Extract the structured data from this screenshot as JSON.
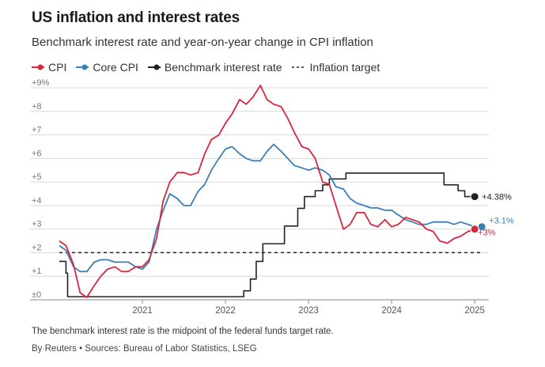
{
  "header": {
    "title": "US inflation and interest rates",
    "subtitle": "Benchmark interest rate and year-on-year change in CPI inflation"
  },
  "footer": {
    "note": "The benchmark interest rate is the midpoint of the federal funds target rate.",
    "source": "By Reuters • Sources: Bureau of Labor Statistics, LSEG"
  },
  "colors": {
    "cpi": "#d7263d",
    "core": "#3a7fb5",
    "rate": "#222222",
    "target": "#222222",
    "grid": "#d9d9d9"
  },
  "chart_data": {
    "type": "line",
    "title": "US inflation and interest rates",
    "subtitle": "Benchmark interest rate and year-on-year change in CPI inflation",
    "xlabel": "",
    "ylabel": "",
    "xlim": [
      2020.0,
      2025.17
    ],
    "ylim": [
      0,
      9
    ],
    "y_ticks": [
      0,
      1,
      2,
      3,
      4,
      5,
      6,
      7,
      8,
      9
    ],
    "y_tick_labels": [
      "±0",
      "+1",
      "+2",
      "+3",
      "+4",
      "+5",
      "+6",
      "+7",
      "+8",
      "+9%"
    ],
    "x_ticks": [
      2021,
      2022,
      2023,
      2024,
      2025
    ],
    "x_tick_labels": [
      "2021",
      "2022",
      "2023",
      "2024",
      "2025"
    ],
    "grid": true,
    "legend": [
      {
        "name": "CPI",
        "style": "line-dot"
      },
      {
        "name": "Core CPI",
        "style": "line-dot"
      },
      {
        "name": "Benchmark interest rate",
        "style": "line-dot"
      },
      {
        "name": "Inflation target",
        "style": "dashed"
      }
    ],
    "series": [
      {
        "name": "CPI",
        "step": false,
        "end_label": "+3%",
        "x": [
          2020.0,
          2020.08,
          2020.17,
          2020.25,
          2020.33,
          2020.42,
          2020.5,
          2020.58,
          2020.67,
          2020.75,
          2020.83,
          2020.92,
          2021.0,
          2021.08,
          2021.17,
          2021.25,
          2021.33,
          2021.42,
          2021.5,
          2021.58,
          2021.67,
          2021.75,
          2021.83,
          2021.92,
          2022.0,
          2022.08,
          2022.17,
          2022.25,
          2022.33,
          2022.42,
          2022.5,
          2022.58,
          2022.67,
          2022.75,
          2022.83,
          2022.92,
          2023.0,
          2023.08,
          2023.17,
          2023.25,
          2023.33,
          2023.42,
          2023.5,
          2023.58,
          2023.67,
          2023.75,
          2023.83,
          2023.92,
          2024.0,
          2024.08,
          2024.17,
          2024.25,
          2024.33,
          2024.42,
          2024.5,
          2024.58,
          2024.67,
          2024.75,
          2024.83,
          2024.92,
          2025.0
        ],
        "values": [
          2.5,
          2.3,
          1.5,
          0.3,
          0.1,
          0.6,
          1.0,
          1.3,
          1.4,
          1.2,
          1.2,
          1.4,
          1.4,
          1.7,
          2.6,
          4.2,
          5.0,
          5.4,
          5.4,
          5.3,
          5.4,
          6.2,
          6.8,
          7.0,
          7.5,
          7.9,
          8.5,
          8.3,
          8.6,
          9.1,
          8.5,
          8.3,
          8.2,
          7.7,
          7.1,
          6.5,
          6.4,
          6.0,
          5.0,
          4.9,
          4.0,
          3.0,
          3.2,
          3.7,
          3.7,
          3.2,
          3.1,
          3.4,
          3.1,
          3.2,
          3.5,
          3.4,
          3.3,
          3.0,
          2.9,
          2.5,
          2.4,
          2.6,
          2.7,
          2.9,
          3.0
        ]
      },
      {
        "name": "Core CPI",
        "step": false,
        "end_label": "+3.1%",
        "x": [
          2020.0,
          2020.08,
          2020.17,
          2020.25,
          2020.33,
          2020.42,
          2020.5,
          2020.58,
          2020.67,
          2020.75,
          2020.83,
          2020.92,
          2021.0,
          2021.08,
          2021.17,
          2021.25,
          2021.33,
          2021.42,
          2021.5,
          2021.58,
          2021.67,
          2021.75,
          2021.83,
          2021.92,
          2022.0,
          2022.08,
          2022.17,
          2022.25,
          2022.33,
          2022.42,
          2022.5,
          2022.58,
          2022.67,
          2022.75,
          2022.83,
          2022.92,
          2023.0,
          2023.08,
          2023.17,
          2023.25,
          2023.33,
          2023.42,
          2023.5,
          2023.58,
          2023.67,
          2023.75,
          2023.83,
          2023.92,
          2024.0,
          2024.08,
          2024.17,
          2024.25,
          2024.33,
          2024.42,
          2024.5,
          2024.58,
          2024.67,
          2024.75,
          2024.83,
          2024.92,
          2025.0
        ],
        "values": [
          2.3,
          2.1,
          1.4,
          1.2,
          1.2,
          1.6,
          1.7,
          1.7,
          1.6,
          1.6,
          1.6,
          1.4,
          1.3,
          1.6,
          3.0,
          3.8,
          4.5,
          4.3,
          4.0,
          4.0,
          4.6,
          4.9,
          5.5,
          6.0,
          6.4,
          6.5,
          6.2,
          6.0,
          5.9,
          5.9,
          6.3,
          6.6,
          6.3,
          6.0,
          5.7,
          5.6,
          5.5,
          5.6,
          5.5,
          5.3,
          4.8,
          4.7,
          4.3,
          4.1,
          4.0,
          3.9,
          3.9,
          3.8,
          3.8,
          3.6,
          3.4,
          3.3,
          3.2,
          3.2,
          3.3,
          3.3,
          3.3,
          3.2,
          3.3,
          3.2,
          3.1
        ]
      },
      {
        "name": "Benchmark interest rate",
        "step": true,
        "end_label": "+4.38%",
        "x": [
          2020.0,
          2020.05,
          2020.08,
          2020.1,
          2021.0,
          2021.5,
          2022.0,
          2022.13,
          2022.22,
          2022.3,
          2022.37,
          2022.45,
          2022.62,
          2022.71,
          2022.8,
          2022.87,
          2022.95,
          2023.08,
          2023.17,
          2023.25,
          2023.35,
          2023.45,
          2023.55,
          2023.6,
          2024.0,
          2024.5,
          2024.63,
          2024.72,
          2024.8,
          2024.88,
          2024.92,
          2025.0
        ],
        "values": [
          1.63,
          1.63,
          1.13,
          0.13,
          0.13,
          0.13,
          0.13,
          0.13,
          0.38,
          0.88,
          1.63,
          2.38,
          2.38,
          3.13,
          3.13,
          3.88,
          4.38,
          4.63,
          4.88,
          5.13,
          5.13,
          5.38,
          5.38,
          5.38,
          5.38,
          5.38,
          4.88,
          4.88,
          4.63,
          4.38,
          4.38,
          4.38
        ]
      },
      {
        "name": "Inflation target",
        "step": false,
        "dashed": true,
        "x": [
          2020.0,
          2025.1
        ],
        "values": [
          2,
          2
        ]
      }
    ]
  }
}
